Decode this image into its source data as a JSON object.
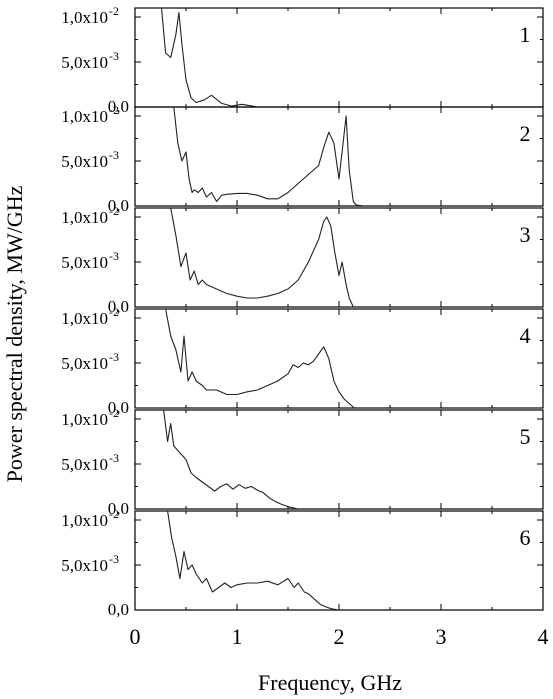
{
  "chart_data": {
    "type": "line",
    "xlabel": "Frequency, GHz",
    "ylabel": "Power spectral density, MW/GHz",
    "xlim": [
      0,
      4
    ],
    "x_ticks": [
      "0",
      "1",
      "2",
      "3",
      "4"
    ],
    "ylim": [
      0,
      0.011
    ],
    "y_tick_labels": {
      "zero": "0,0",
      "mid": {
        "mantissa": "5,0x10",
        "exponent": "-3"
      },
      "top": {
        "mantissa": "1,0x10",
        "exponent": "-2"
      }
    },
    "grid": false,
    "panels": [
      {
        "label": "1",
        "x": [
          0.26,
          0.3,
          0.35,
          0.4,
          0.43,
          0.46,
          0.5,
          0.55,
          0.6,
          0.68,
          0.75,
          0.85,
          0.95,
          1.05,
          1.15,
          1.2
        ],
        "values": [
          0.013,
          0.006,
          0.0055,
          0.008,
          0.0105,
          0.007,
          0.003,
          0.001,
          0.0005,
          0.0008,
          0.0013,
          0.0004,
          0.0001,
          0.0003,
          0.0001,
          0.0
        ]
      },
      {
        "label": "2",
        "x": [
          0.38,
          0.42,
          0.46,
          0.5,
          0.53,
          0.56,
          0.58,
          0.62,
          0.66,
          0.7,
          0.75,
          0.8,
          0.85,
          0.9,
          1.0,
          1.1,
          1.2,
          1.3,
          1.4,
          1.5,
          1.6,
          1.7,
          1.8,
          1.85,
          1.9,
          1.95,
          2.0,
          2.04,
          2.07,
          2.1,
          2.14,
          2.17,
          2.25
        ],
        "values": [
          0.011,
          0.007,
          0.005,
          0.006,
          0.003,
          0.0015,
          0.0018,
          0.0015,
          0.002,
          0.001,
          0.0015,
          0.0005,
          0.0012,
          0.0013,
          0.0014,
          0.0014,
          0.0012,
          0.0008,
          0.0008,
          0.0015,
          0.0025,
          0.0035,
          0.0045,
          0.0065,
          0.0082,
          0.007,
          0.003,
          0.007,
          0.01,
          0.004,
          0.0005,
          0.0001,
          0.0
        ]
      },
      {
        "label": "3",
        "x": [
          0.35,
          0.4,
          0.45,
          0.5,
          0.54,
          0.58,
          0.62,
          0.66,
          0.7,
          0.8,
          0.9,
          1.0,
          1.1,
          1.2,
          1.3,
          1.4,
          1.5,
          1.6,
          1.7,
          1.8,
          1.85,
          1.88,
          1.92,
          1.96,
          2.0,
          2.03,
          2.07,
          2.1,
          2.14
        ],
        "values": [
          0.011,
          0.008,
          0.0045,
          0.006,
          0.003,
          0.004,
          0.0025,
          0.003,
          0.0025,
          0.002,
          0.0015,
          0.0012,
          0.001,
          0.001,
          0.0012,
          0.0015,
          0.002,
          0.003,
          0.005,
          0.0075,
          0.0095,
          0.01,
          0.009,
          0.006,
          0.0035,
          0.005,
          0.0025,
          0.001,
          0.0
        ]
      },
      {
        "label": "4",
        "x": [
          0.3,
          0.35,
          0.4,
          0.45,
          0.48,
          0.52,
          0.56,
          0.6,
          0.66,
          0.7,
          0.8,
          0.9,
          1.0,
          1.1,
          1.2,
          1.3,
          1.4,
          1.5,
          1.55,
          1.6,
          1.65,
          1.7,
          1.75,
          1.8,
          1.85,
          1.9,
          1.95,
          2.0,
          2.05,
          2.1,
          2.15
        ],
        "values": [
          0.011,
          0.008,
          0.0065,
          0.004,
          0.008,
          0.003,
          0.004,
          0.003,
          0.0025,
          0.002,
          0.002,
          0.0015,
          0.0015,
          0.0018,
          0.002,
          0.0025,
          0.003,
          0.0038,
          0.0048,
          0.0045,
          0.005,
          0.0048,
          0.0052,
          0.006,
          0.0068,
          0.0055,
          0.003,
          0.0018,
          0.001,
          0.0005,
          0.0
        ]
      },
      {
        "label": "5",
        "x": [
          0.28,
          0.32,
          0.35,
          0.38,
          0.42,
          0.46,
          0.5,
          0.55,
          0.6,
          0.66,
          0.72,
          0.78,
          0.84,
          0.9,
          0.96,
          1.02,
          1.08,
          1.14,
          1.2,
          1.26,
          1.32,
          1.38,
          1.44,
          1.52,
          1.6
        ],
        "values": [
          0.011,
          0.0075,
          0.0095,
          0.007,
          0.0065,
          0.006,
          0.0055,
          0.004,
          0.0035,
          0.003,
          0.0025,
          0.002,
          0.0025,
          0.0028,
          0.0022,
          0.0027,
          0.0023,
          0.0025,
          0.0021,
          0.0018,
          0.0012,
          0.0008,
          0.0005,
          0.0002,
          0.0
        ]
      },
      {
        "label": "6",
        "x": [
          0.32,
          0.36,
          0.4,
          0.44,
          0.48,
          0.52,
          0.56,
          0.6,
          0.66,
          0.7,
          0.76,
          0.82,
          0.88,
          0.94,
          1.0,
          1.1,
          1.2,
          1.3,
          1.4,
          1.5,
          1.56,
          1.6,
          1.66,
          1.7,
          1.76,
          1.82,
          1.88,
          1.94,
          2.0
        ],
        "values": [
          0.011,
          0.008,
          0.006,
          0.0035,
          0.0065,
          0.0045,
          0.005,
          0.004,
          0.003,
          0.0035,
          0.002,
          0.0025,
          0.003,
          0.0025,
          0.0028,
          0.003,
          0.003,
          0.0032,
          0.0028,
          0.0035,
          0.0025,
          0.003,
          0.002,
          0.0018,
          0.0012,
          0.0006,
          0.0003,
          0.0001,
          0.0
        ]
      }
    ]
  }
}
